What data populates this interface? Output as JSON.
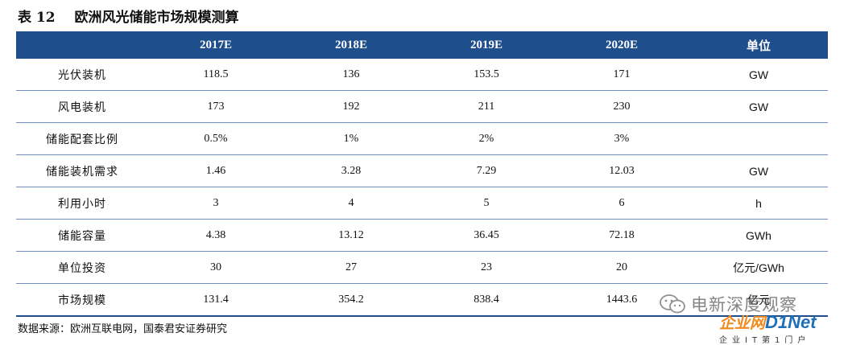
{
  "title": {
    "number": "表 12",
    "text": "欧洲风光储能市场规模测算"
  },
  "table": {
    "headers": [
      "",
      "2017E",
      "2018E",
      "2019E",
      "2020E",
      "单位"
    ],
    "rows": [
      [
        "光伏装机",
        "118.5",
        "136",
        "153.5",
        "171",
        "GW"
      ],
      [
        "风电装机",
        "173",
        "192",
        "211",
        "230",
        "GW"
      ],
      [
        "储能配套比例",
        "0.5%",
        "1%",
        "2%",
        "3%",
        ""
      ],
      [
        "储能装机需求",
        "1.46",
        "3.28",
        "7.29",
        "12.03",
        "GW"
      ],
      [
        "利用小时",
        "3",
        "4",
        "5",
        "6",
        "h"
      ],
      [
        "储能容量",
        "4.38",
        "13.12",
        "36.45",
        "72.18",
        "GWh"
      ],
      [
        "单位投资",
        "30",
        "27",
        "23",
        "20",
        "亿元/GWh"
      ],
      [
        "市场规模",
        "131.4",
        "354.2",
        "838.4",
        "1443.6",
        "亿元"
      ]
    ]
  },
  "source": "数据来源：欧洲互联电网，国泰君安证券研究",
  "watermark": {
    "wechat_text": "电新深度观察",
    "logo_cn": "企业网",
    "logo_en": "D1Net",
    "logo_sub": "企业IT第1门户"
  },
  "colors": {
    "header_bg": "#1f4e8c",
    "row_rule": "#6f8fbf"
  }
}
